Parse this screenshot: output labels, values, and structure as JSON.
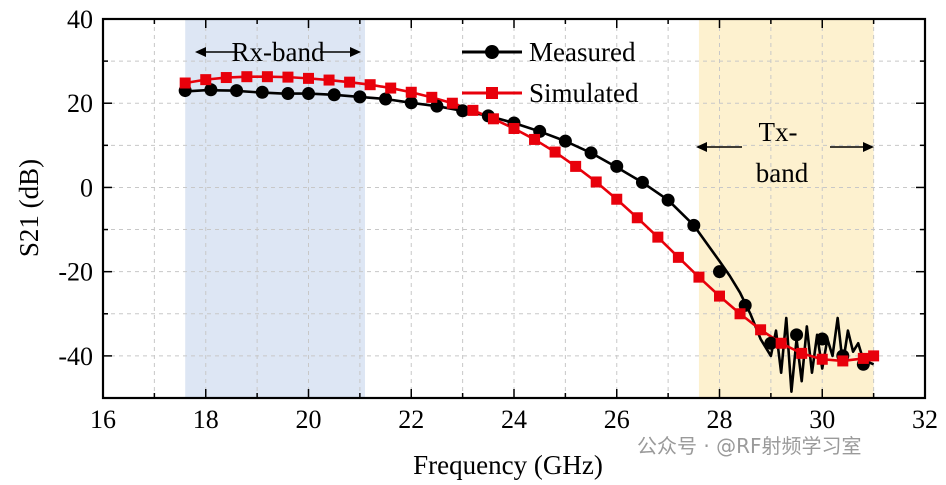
{
  "chart_data": {
    "type": "line",
    "xlabel": "Frequency (GHz)",
    "ylabel": "S21 (dB)",
    "xlim": [
      16,
      32
    ],
    "ylim": [
      -50,
      40
    ],
    "xticks": [
      "16",
      "18",
      "20",
      "22",
      "24",
      "26",
      "28",
      "30",
      "32"
    ],
    "yticks": [
      "-40",
      "-20",
      "0",
      "20",
      "40"
    ],
    "grid": true,
    "legend_position": "top-center",
    "bands": [
      {
        "name": "rx-band",
        "label": "Rx-band",
        "x_start": 17.6,
        "x_end": 21.1,
        "color": "#dde6f4"
      },
      {
        "name": "tx-band",
        "label_line1": "Tx-",
        "label_line2": "band",
        "x_start": 27.6,
        "x_end": 31.0,
        "color": "#fdf1cf"
      }
    ],
    "series": [
      {
        "name": "Measured",
        "color": "#000000",
        "marker": "circle",
        "x": [
          17.6,
          18.0,
          18.5,
          19.0,
          19.5,
          20.0,
          20.5,
          21.0,
          21.5,
          22.0,
          22.5,
          23.0,
          23.5,
          24.0,
          24.5,
          25.0,
          25.5,
          26.0,
          26.5,
          27.0,
          27.5,
          28.0,
          28.2,
          28.4,
          28.6,
          28.8,
          29.0,
          29.1,
          29.2,
          29.3,
          29.4,
          29.5,
          29.6,
          29.7,
          29.8,
          29.9,
          30.0,
          30.1,
          30.2,
          30.3,
          30.4,
          30.5,
          30.6,
          30.7,
          30.8,
          31.0
        ],
        "y": [
          22.8,
          23.1,
          23.0,
          22.6,
          22.3,
          22.3,
          22.0,
          21.5,
          21.0,
          20.1,
          19.3,
          18.2,
          17.0,
          15.3,
          13.3,
          11.0,
          8.2,
          4.8,
          1.2,
          -3.0,
          -9.0,
          -17.5,
          -21.0,
          -25.0,
          -30.0,
          -36.0,
          -40.0,
          -34.0,
          -44.0,
          -31.0,
          -48.5,
          -36.0,
          -46.0,
          -33.0,
          -44.0,
          -35.0,
          -43.0,
          -36.0,
          -40.0,
          -31.0,
          -42.0,
          -34.0,
          -39.0,
          -37.0,
          -41.0,
          -42.0
        ],
        "markers_x": [
          17.6,
          18.1,
          18.6,
          19.1,
          19.6,
          20.0,
          20.5,
          21.0,
          21.5,
          22.0,
          22.5,
          23.0,
          23.5,
          24.0,
          24.5,
          25.0,
          25.5,
          26.0,
          26.5,
          27.0,
          27.5,
          28.0,
          28.5,
          29.0,
          29.5,
          30.0,
          30.4,
          30.8
        ],
        "markers_y": [
          23.0,
          23.2,
          23.0,
          22.6,
          22.3,
          22.3,
          22.0,
          21.5,
          21.0,
          20.1,
          19.3,
          18.2,
          17.0,
          15.3,
          13.3,
          11.0,
          8.2,
          5.0,
          1.2,
          -3.0,
          -9.0,
          -20.0,
          -28.0,
          -37.0,
          -35.0,
          -36.0,
          -40.0,
          -42.0
        ]
      },
      {
        "name": "Simulated",
        "color": "#e8000b",
        "marker": "square",
        "x": [
          17.6,
          18.0,
          18.4,
          18.8,
          19.2,
          19.6,
          20.0,
          20.4,
          20.8,
          21.2,
          21.6,
          22.0,
          22.4,
          22.8,
          23.2,
          23.6,
          24.0,
          24.4,
          24.8,
          25.2,
          25.6,
          26.0,
          26.4,
          26.8,
          27.2,
          27.6,
          28.0,
          28.4,
          28.8,
          29.2,
          29.6,
          30.0,
          30.4,
          30.8,
          31.0
        ],
        "y": [
          24.8,
          25.6,
          26.1,
          26.3,
          26.3,
          26.2,
          25.9,
          25.5,
          25.0,
          24.4,
          23.6,
          22.6,
          21.4,
          20.0,
          18.3,
          16.3,
          14.0,
          11.4,
          8.4,
          5.0,
          1.3,
          -2.8,
          -7.2,
          -11.8,
          -16.6,
          -21.3,
          -25.8,
          -30.0,
          -33.8,
          -37.0,
          -39.4,
          -40.8,
          -41.2,
          -40.6,
          -40.0
        ]
      }
    ]
  },
  "watermark": "公众号 · @RF射频学习室"
}
